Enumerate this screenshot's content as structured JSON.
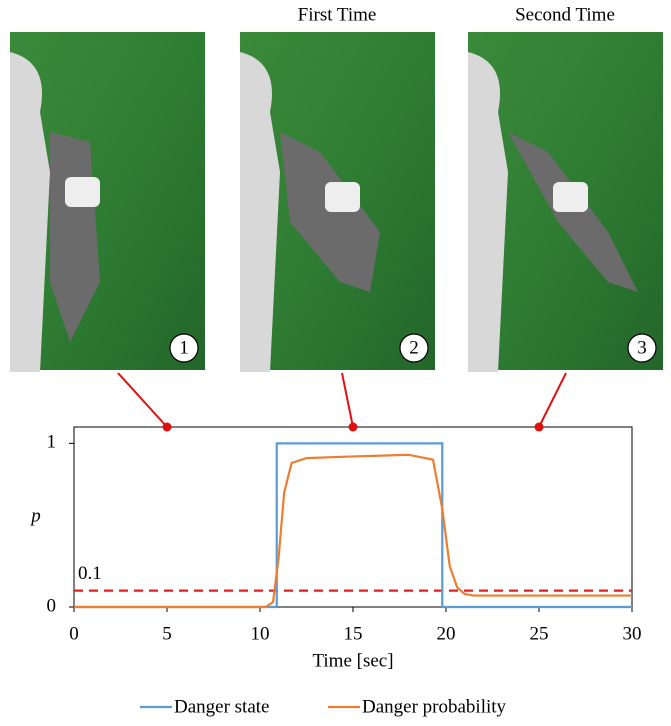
{
  "panels": [
    {
      "number": "1"
    },
    {
      "caption": "First Time",
      "number": "2"
    },
    {
      "caption": "Second Time",
      "number": "3"
    }
  ],
  "chart_data": {
    "type": "line",
    "xlabel": "Time [sec]",
    "ylabel": "p",
    "xlim": [
      0,
      30
    ],
    "xticks": [
      0,
      5,
      10,
      15,
      20,
      25,
      30
    ],
    "ylim": [
      0,
      1.1
    ],
    "yticks": [
      0,
      1
    ],
    "threshold": 0.1,
    "threshold_color": "#e02020",
    "markers_x": [
      5,
      15,
      25
    ],
    "marker_color": "#e01010",
    "series": [
      {
        "name": "Danger state",
        "color": "#5b9bd5",
        "x": [
          0,
          10.9,
          10.9,
          19.8,
          19.8,
          30
        ],
        "values": [
          0,
          0,
          1,
          1,
          0,
          0
        ]
      },
      {
        "name": "Danger probability",
        "color": "#ed7d31",
        "x": [
          0,
          10.3,
          10.7,
          11,
          11.3,
          11.7,
          12.5,
          15,
          18,
          19.3,
          19.8,
          20.2,
          20.6,
          21,
          21.5,
          25,
          30
        ],
        "values": [
          0,
          0,
          0.03,
          0.3,
          0.7,
          0.88,
          0.91,
          0.92,
          0.93,
          0.9,
          0.6,
          0.25,
          0.12,
          0.08,
          0.07,
          0.07,
          0.07
        ]
      }
    ]
  }
}
